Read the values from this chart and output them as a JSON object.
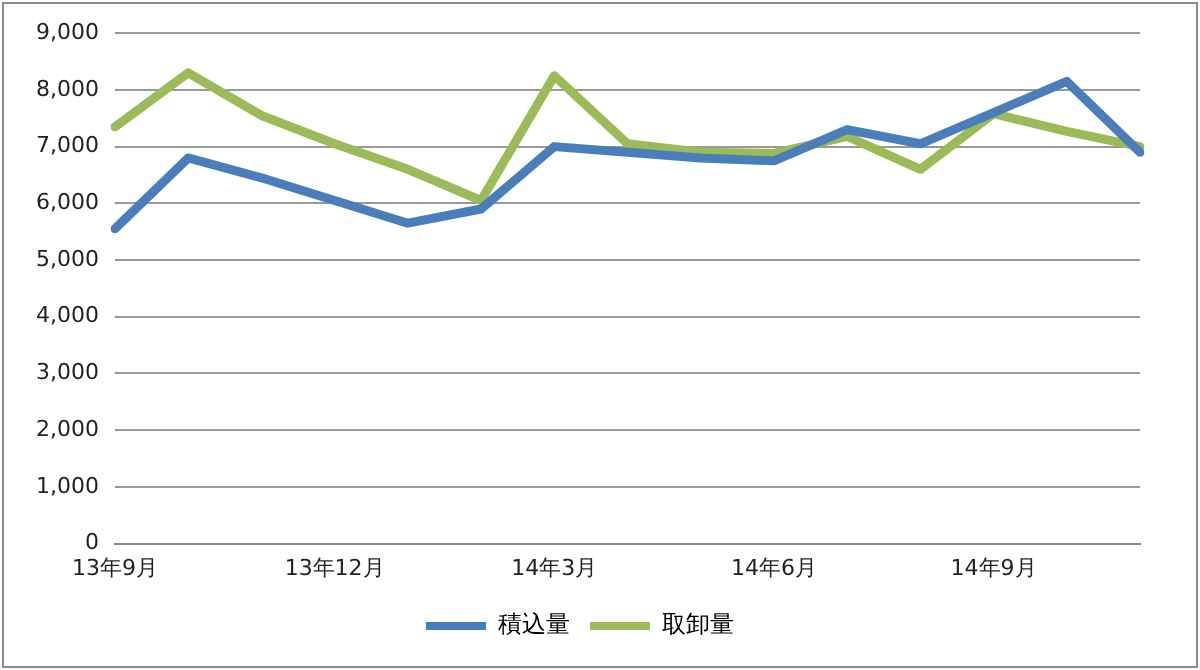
{
  "chart_data": {
    "type": "line",
    "categories": [
      "13年9月",
      null,
      null,
      "13年12月",
      null,
      null,
      "14年3月",
      null,
      null,
      "14年6月",
      null,
      null,
      "14年9月",
      null,
      null
    ],
    "series": [
      {
        "name": "積込量",
        "color": "#4a7ebb",
        "values": [
          5550,
          6800,
          6450,
          6050,
          5650,
          5900,
          7000,
          6900,
          6800,
          6750,
          7300,
          7050,
          7600,
          8150,
          6900
        ]
      },
      {
        "name": "取卸量",
        "color": "#9bbb59",
        "values": [
          7350,
          8300,
          7550,
          7050,
          6600,
          6050,
          8250,
          7050,
          6900,
          6880,
          7180,
          6600,
          7580,
          7270,
          7000
        ]
      }
    ],
    "ylim": [
      0,
      9000
    ],
    "yticks": [
      0,
      {
        "value": 1000,
        "label": "1,000"
      },
      {
        "value": 2000,
        "label": "2,000"
      },
      {
        "value": 3000,
        "label": "3,000"
      },
      {
        "value": 4000,
        "label": "4,000"
      },
      {
        "value": 5000,
        "label": "5,000"
      },
      {
        "value": 6000,
        "label": "6,000"
      },
      {
        "value": 7000,
        "label": "7,000"
      },
      {
        "value": 8000,
        "label": "8,000"
      },
      {
        "value": 9000,
        "label": "9,000"
      }
    ],
    "grid": "y",
    "legend": "bottom",
    "marker": "none",
    "line_style": "solid"
  }
}
